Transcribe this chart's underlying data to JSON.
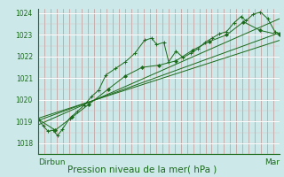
{
  "bg_color": "#cce8e8",
  "plot_bg_color": "#cce8e8",
  "line_color": "#1a6b1a",
  "marker_color": "#1a6b1a",
  "title": "Pression niveau de la mer( hPa )",
  "xlabel_left": "Dirbun",
  "xlabel_right": "Mar",
  "ylim": [
    1017.5,
    1024.2
  ],
  "xlim": [
    0,
    100
  ],
  "yticks": [
    1018,
    1019,
    1020,
    1021,
    1022,
    1023,
    1024
  ],
  "series1_x": [
    0,
    2,
    4,
    6,
    8,
    10,
    13,
    16,
    19,
    22,
    25,
    28,
    32,
    36,
    40,
    44,
    47,
    49,
    52,
    54,
    57,
    60,
    63,
    66,
    69,
    72,
    75,
    78,
    81,
    84,
    86,
    89,
    92,
    95,
    98,
    100
  ],
  "series1_y": [
    1019.1,
    1018.8,
    1018.55,
    1018.6,
    1018.35,
    1018.65,
    1019.15,
    1019.45,
    1019.75,
    1020.15,
    1020.45,
    1021.15,
    1021.45,
    1021.75,
    1022.15,
    1022.75,
    1022.85,
    1022.55,
    1022.65,
    1021.75,
    1022.25,
    1021.95,
    1022.15,
    1022.35,
    1022.65,
    1022.85,
    1023.05,
    1023.15,
    1023.55,
    1023.85,
    1023.65,
    1023.95,
    1024.05,
    1023.75,
    1023.15,
    1023.05
  ],
  "series2_x": [
    0,
    7,
    14,
    21,
    29,
    36,
    43,
    50,
    57,
    64,
    71,
    78,
    85,
    92,
    100
  ],
  "series2_y": [
    1019.1,
    1018.6,
    1019.2,
    1019.8,
    1020.5,
    1021.1,
    1021.5,
    1021.6,
    1021.8,
    1022.3,
    1022.7,
    1023.0,
    1023.6,
    1023.2,
    1023.0
  ],
  "trend1_x": [
    0,
    100
  ],
  "trend1_y": [
    1019.05,
    1023.1
  ],
  "trend2_x": [
    0,
    100
  ],
  "trend2_y": [
    1018.85,
    1023.75
  ],
  "trend3_x": [
    0,
    100
  ],
  "trend3_y": [
    1019.15,
    1022.75
  ],
  "n_vgrid": 40,
  "vgrid_color": "#c08080",
  "hgrid_major_color": "#ffffff",
  "hgrid_minor_color": "#ddbaba",
  "ytick_fontsize": 5.5,
  "label_fontsize": 6.5,
  "title_fontsize": 7.5
}
